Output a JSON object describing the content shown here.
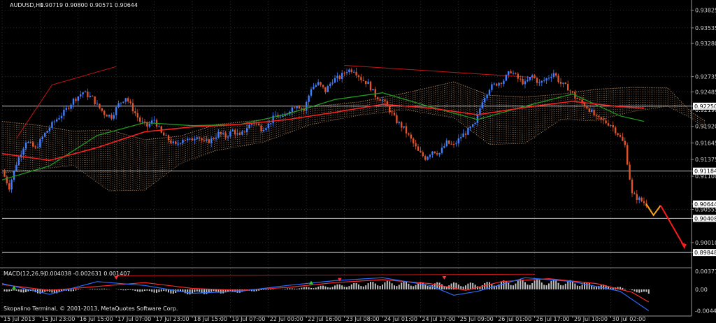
{
  "chart_data": [
    {
      "type": "candlestick",
      "header": {
        "symbol": "AUDUSD,H1",
        "ohlc": "0.90719 0.90800 0.90571 0.90644"
      },
      "price_axis": {
        "ylim": [
          0.8962,
          0.9397
        ],
        "tick_labels": [
          "0.93825",
          "0.93535",
          "0.93280",
          "0.92735",
          "0.92485",
          "0.92250",
          "0.92190",
          "0.91920",
          "0.91645",
          "0.91375",
          "0.91184",
          "0.91100",
          "0.90644",
          "0.90555",
          "0.90408",
          "0.90010",
          "0.89848"
        ],
        "tick_values": [
          0.93825,
          0.93535,
          0.9328,
          0.92735,
          0.92485,
          0.9225,
          0.9219,
          0.9192,
          0.91645,
          0.91375,
          0.91184,
          0.911,
          0.90644,
          0.90555,
          0.90408,
          0.9001,
          0.89848
        ],
        "boxed_levels": [
          "0.92250",
          "0.91184",
          "0.90644",
          "0.90408",
          "0.89848"
        ]
      },
      "horizontal_levels": [
        0.9225,
        0.91184,
        0.90408,
        0.89848
      ],
      "time_axis": {
        "labels": [
          "15 Jul 2013",
          "15 Jul 23:00",
          "16 Jul 15:00",
          "17 Jul 07:00",
          "17 Jul 23:00",
          "18 Jul 15:00",
          "19 Jul 07:00",
          "22 Jul 00:00",
          "22 Jul 16:00",
          "23 Jul 08:00",
          "24 Jul 01:00",
          "24 Jul 17:00",
          "25 Jul 09:00",
          "26 Jul 01:00",
          "26 Jul 17:00",
          "29 Jul 10:00",
          "30 Jul 02:00"
        ],
        "slots": [
          0,
          16,
          32,
          48,
          64,
          80,
          96,
          112,
          128,
          144,
          160,
          176,
          192,
          208,
          224,
          240,
          256
        ]
      },
      "price_path": [
        [
          0,
          0.9118
        ],
        [
          3,
          0.9092
        ],
        [
          6,
          0.9131
        ],
        [
          10,
          0.9168
        ],
        [
          14,
          0.9155
        ],
        [
          18,
          0.918
        ],
        [
          22,
          0.92
        ],
        [
          26,
          0.9215
        ],
        [
          30,
          0.9235
        ],
        [
          34,
          0.9248
        ],
        [
          38,
          0.9238
        ],
        [
          40,
          0.9226
        ],
        [
          43,
          0.9213
        ],
        [
          46,
          0.9208
        ],
        [
          49,
          0.9228
        ],
        [
          52,
          0.924
        ],
        [
          55,
          0.922
        ],
        [
          58,
          0.92
        ],
        [
          61,
          0.9192
        ],
        [
          64,
          0.9203
        ],
        [
          67,
          0.918
        ],
        [
          70,
          0.917
        ],
        [
          73,
          0.916
        ],
        [
          76,
          0.9172
        ],
        [
          79,
          0.9168
        ],
        [
          82,
          0.9178
        ],
        [
          85,
          0.9165
        ],
        [
          88,
          0.917
        ],
        [
          91,
          0.918
        ],
        [
          94,
          0.9175
        ],
        [
          97,
          0.9185
        ],
        [
          100,
          0.9175
        ],
        [
          103,
          0.919
        ],
        [
          106,
          0.92
        ],
        [
          109,
          0.9188
        ],
        [
          112,
          0.9195
        ],
        [
          115,
          0.921
        ],
        [
          118,
          0.9205
        ],
        [
          121,
          0.922
        ],
        [
          124,
          0.9228
        ],
        [
          127,
          0.9218
        ],
        [
          130,
          0.9255
        ],
        [
          133,
          0.9262
        ],
        [
          136,
          0.925
        ],
        [
          139,
          0.9268
        ],
        [
          142,
          0.9272
        ],
        [
          145,
          0.9284
        ],
        [
          148,
          0.9285
        ],
        [
          151,
          0.927
        ],
        [
          154,
          0.9262
        ],
        [
          157,
          0.9242
        ],
        [
          160,
          0.9235
        ],
        [
          163,
          0.9218
        ],
        [
          166,
          0.92
        ],
        [
          169,
          0.9188
        ],
        [
          172,
          0.917
        ],
        [
          175,
          0.915
        ],
        [
          178,
          0.914
        ],
        [
          181,
          0.9152
        ],
        [
          184,
          0.9148
        ],
        [
          187,
          0.9165
        ],
        [
          190,
          0.916
        ],
        [
          193,
          0.9175
        ],
        [
          196,
          0.9185
        ],
        [
          199,
          0.9195
        ],
        [
          202,
          0.9235
        ],
        [
          205,
          0.9255
        ],
        [
          208,
          0.9262
        ],
        [
          211,
          0.9268
        ],
        [
          214,
          0.9283
        ],
        [
          217,
          0.927
        ],
        [
          220,
          0.9262
        ],
        [
          223,
          0.9275
        ],
        [
          226,
          0.9262
        ],
        [
          229,
          0.927
        ],
        [
          232,
          0.928
        ],
        [
          235,
          0.9262
        ],
        [
          238,
          0.9255
        ],
        [
          241,
          0.924
        ],
        [
          244,
          0.923
        ],
        [
          247,
          0.922
        ],
        [
          250,
          0.9205
        ],
        [
          253,
          0.92
        ],
        [
          256,
          0.9195
        ],
        [
          259,
          0.918
        ],
        [
          262,
          0.916
        ],
        [
          265,
          0.908
        ],
        [
          268,
          0.9072
        ],
        [
          271,
          0.9064
        ]
      ],
      "projection_orange": [
        [
          271,
          0.9064
        ],
        [
          274,
          0.9046
        ],
        [
          277,
          0.9062
        ]
      ],
      "projection_red": [
        [
          277,
          0.9062
        ],
        [
          287,
          0.8994
        ]
      ],
      "trendline_polyline": [
        [
          6,
          0.9172
        ],
        [
          21,
          0.926
        ],
        [
          48,
          0.929
        ]
      ],
      "trendline_top": [
        [
          144,
          0.9292
        ],
        [
          224,
          0.9272
        ]
      ],
      "ma_red": [
        [
          0,
          0.9147
        ],
        [
          20,
          0.9136
        ],
        [
          40,
          0.9157
        ],
        [
          60,
          0.9183
        ],
        [
          80,
          0.9191
        ],
        [
          100,
          0.9195
        ],
        [
          120,
          0.9203
        ],
        [
          140,
          0.9215
        ],
        [
          160,
          0.9228
        ],
        [
          180,
          0.9222
        ],
        [
          200,
          0.9211
        ],
        [
          220,
          0.9223
        ],
        [
          240,
          0.9233
        ],
        [
          260,
          0.9224
        ],
        [
          270,
          0.9222
        ]
      ],
      "ma_green": [
        [
          0,
          0.9104
        ],
        [
          20,
          0.9127
        ],
        [
          40,
          0.9177
        ],
        [
          60,
          0.9198
        ],
        [
          80,
          0.9193
        ],
        [
          100,
          0.9195
        ],
        [
          120,
          0.9212
        ],
        [
          140,
          0.9236
        ],
        [
          160,
          0.9247
        ],
        [
          180,
          0.9224
        ],
        [
          200,
          0.9203
        ],
        [
          220,
          0.9225
        ],
        [
          240,
          0.9245
        ],
        [
          260,
          0.9209
        ],
        [
          270,
          0.92
        ]
      ],
      "cloud_upper": [
        [
          0,
          0.92
        ],
        [
          15,
          0.9194
        ],
        [
          30,
          0.9184
        ],
        [
          45,
          0.9186
        ],
        [
          60,
          0.917
        ],
        [
          75,
          0.9176
        ],
        [
          90,
          0.9195
        ],
        [
          110,
          0.9203
        ],
        [
          130,
          0.9224
        ],
        [
          150,
          0.9232
        ],
        [
          170,
          0.9247
        ],
        [
          190,
          0.9265
        ],
        [
          205,
          0.9243
        ],
        [
          220,
          0.924
        ],
        [
          235,
          0.9245
        ],
        [
          250,
          0.9253
        ],
        [
          265,
          0.9256
        ],
        [
          280,
          0.9255
        ],
        [
          290,
          0.9215
        ],
        [
          296,
          0.92
        ]
      ],
      "cloud_lower": [
        [
          0,
          0.9115
        ],
        [
          15,
          0.9121
        ],
        [
          30,
          0.9128
        ],
        [
          45,
          0.9086
        ],
        [
          60,
          0.9087
        ],
        [
          75,
          0.9131
        ],
        [
          90,
          0.9152
        ],
        [
          110,
          0.9166
        ],
        [
          130,
          0.9195
        ],
        [
          150,
          0.921
        ],
        [
          170,
          0.9219
        ],
        [
          190,
          0.9206
        ],
        [
          205,
          0.9162
        ],
        [
          220,
          0.9164
        ],
        [
          235,
          0.9203
        ],
        [
          250,
          0.9201
        ],
        [
          265,
          0.9216
        ],
        [
          280,
          0.9225
        ],
        [
          290,
          0.9205
        ],
        [
          296,
          0.9188
        ]
      ]
    },
    {
      "type": "macd",
      "label": "MACD(12,26,9)",
      "values_text": "-0.004038 -0.002631 0.001407",
      "ylim": [
        -0.0049,
        0.0043
      ],
      "ticks": [
        {
          "label": "0.003719",
          "value": 0.003719
        },
        {
          "label": "0.00",
          "value": 0.0
        },
        {
          "label": "-0.004400",
          "value": -0.0044
        }
      ],
      "histogram_amp": [
        [
          0,
          -0.0004
        ],
        [
          20,
          -0.001
        ],
        [
          40,
          0.0003
        ],
        [
          60,
          -0.0006
        ],
        [
          80,
          -0.0011
        ],
        [
          100,
          -0.0007
        ],
        [
          120,
          0.0002
        ],
        [
          140,
          0.001
        ],
        [
          160,
          0.0018
        ],
        [
          180,
          0.0015
        ],
        [
          200,
          0.0014
        ],
        [
          220,
          0.0022
        ],
        [
          240,
          0.0019
        ],
        [
          260,
          0.0005
        ],
        [
          272,
          -0.0014
        ]
      ],
      "line_blue": [
        [
          0,
          0.0012
        ],
        [
          20,
          -0.001
        ],
        [
          40,
          0.0016
        ],
        [
          60,
          0.0008
        ],
        [
          80,
          -0.0008
        ],
        [
          100,
          -0.0004
        ],
        [
          120,
          0.0008
        ],
        [
          140,
          0.0018
        ],
        [
          160,
          0.0024
        ],
        [
          180,
          0.0008
        ],
        [
          190,
          -0.0012
        ],
        [
          200,
          -0.0004
        ],
        [
          220,
          0.0024
        ],
        [
          240,
          0.0016
        ],
        [
          260,
          -0.0004
        ],
        [
          272,
          -0.0044
        ]
      ],
      "line_red": [
        [
          0,
          0.001
        ],
        [
          20,
          -0.0002
        ],
        [
          40,
          0.0006
        ],
        [
          60,
          0.0014
        ],
        [
          80,
          0.0002
        ],
        [
          100,
          -0.0002
        ],
        [
          120,
          0.0004
        ],
        [
          140,
          0.0014
        ],
        [
          160,
          0.002
        ],
        [
          180,
          0.0012
        ],
        [
          195,
          -0.0002
        ],
        [
          210,
          0.0016
        ],
        [
          230,
          0.0022
        ],
        [
          250,
          0.0012
        ],
        [
          265,
          -0.0006
        ],
        [
          272,
          -0.0026
        ]
      ],
      "trend_red": [
        [
          48,
          0.0028
        ],
        [
          224,
          0.0031
        ]
      ]
    }
  ],
  "footer": {
    "copyright": "Skopalino Terminal, © 2001-2013, MetaQuotes Software Corp."
  },
  "colors": {
    "bull": "#3f7fff",
    "bear": "#e0522a",
    "ma_red": "#ff2020",
    "ma_green": "#1e9a1e",
    "cloud": "#c9996e",
    "projection_orange": "#ffa31a",
    "projection_red": "#ff1a1a",
    "macd_blue": "#2a6cff",
    "macd_red": "#ff2a2a",
    "histogram": "#c0c0c0"
  }
}
